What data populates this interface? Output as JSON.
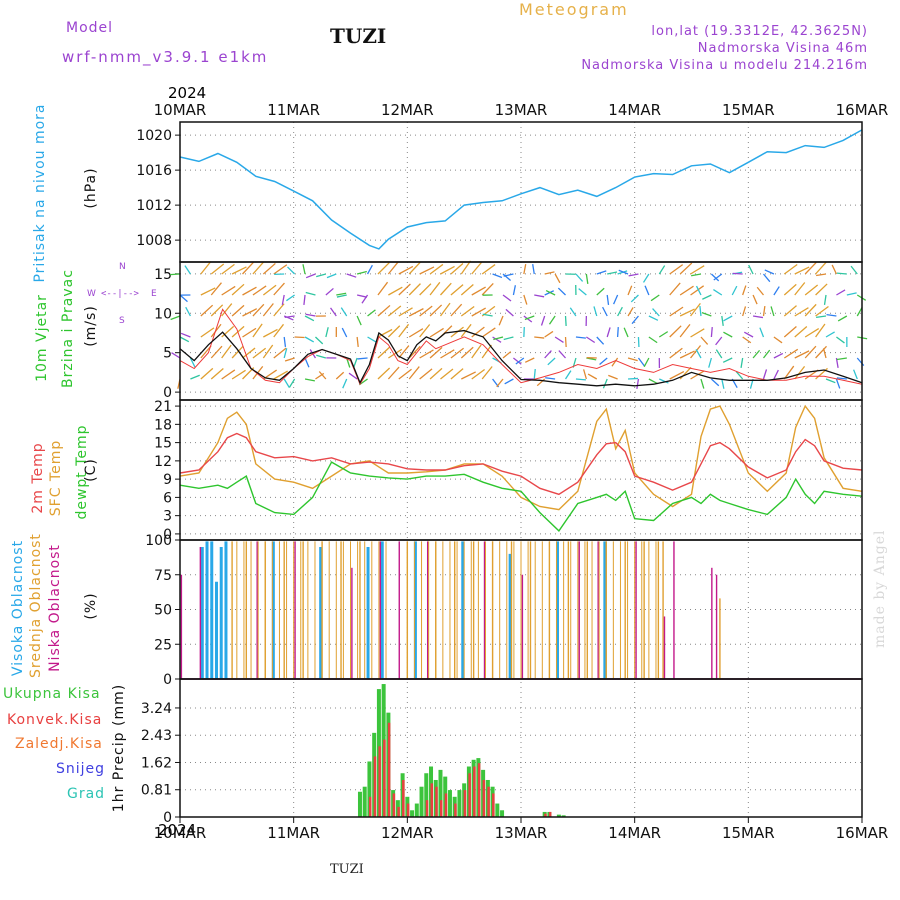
{
  "header": {
    "model_label": "Model",
    "model_name": "wrf-nmm_v3.9.1 e1km",
    "title": "TUZI",
    "product": "Meteogram",
    "lonlat": "lon,lat (19.3312E, 42.3625N)",
    "altitude": "Nadmorska Visina 46m",
    "model_altitude": "Nadmorska Visina u modelu 214.216m"
  },
  "time_axis": {
    "year": "2024",
    "ticks": [
      "10MAR",
      "11MAR",
      "12MAR",
      "13MAR",
      "14MAR",
      "15MAR",
      "16MAR"
    ]
  },
  "footer": {
    "station": "TUZI",
    "signature": "made by Angel"
  },
  "colors": {
    "pressure": "#29a8e8",
    "temp2m": "#e8474a",
    "sfc": "#e0a030",
    "dewpt": "#2ec52e",
    "high_cloud": "#29a8e8",
    "mid_cloud": "#e0a030",
    "low_cloud": "#c2188a",
    "total_precip": "#3cc43c",
    "conv_precip": "#e84040",
    "frozen": "#f07830",
    "snow": "#4040e0",
    "grad": "#2cc4b4",
    "wind_speed": "#111111",
    "gust": "#ee3a3a"
  },
  "panels": {
    "pressure": {
      "label_blue": "Pritisak na nivou mora",
      "unit": "(hPa)",
      "yticks": [
        "1008",
        "1012",
        "1016",
        "1020"
      ]
    },
    "wind": {
      "label_green": "10m Vjetar",
      "label_green2": "Brzina i Pravac",
      "unit": "(m/s)",
      "yticks": [
        "0",
        "5",
        "10",
        "15"
      ],
      "compass": [
        "W",
        "<--|-->",
        "E",
        "S",
        "N"
      ]
    },
    "temp": {
      "l1": "2m Temp",
      "l2": "SFC Temp",
      "l3": "dewpt Temp",
      "unit": "(C)",
      "yticks": [
        "0",
        "3",
        "6",
        "9",
        "12",
        "15",
        "18",
        "21"
      ]
    },
    "cloud": {
      "l1": "Visoka Oblacnost",
      "l2": "Srednja Oblacnost",
      "l3": "Niska Oblacnost",
      "unit": "(%)",
      "yticks": [
        "0",
        "25",
        "50",
        "75",
        "100"
      ]
    },
    "precip": {
      "unit": "1hr Precip (mm)",
      "yticks": [
        "0",
        "0.81",
        "1.62",
        "2.43",
        "3.24"
      ],
      "legend": [
        "Ukupna Kisa",
        "Konvek.Kisa",
        "Zaledj.Kisa",
        "Snijeg",
        "Grad"
      ]
    }
  },
  "chart_data": [
    {
      "type": "line",
      "name": "pressure",
      "ylabel": "(hPa)",
      "ylim": [
        1005.5,
        1021.5
      ],
      "x_hours": [
        0,
        4,
        8,
        12,
        16,
        20,
        24,
        28,
        32,
        36,
        40,
        42,
        44,
        48,
        52,
        56,
        60,
        64,
        68,
        72,
        76,
        80,
        84,
        88,
        92,
        96,
        100,
        104,
        108,
        112,
        116,
        120,
        124,
        128,
        132,
        136,
        140,
        144
      ],
      "values": [
        1017.5,
        1017,
        1017.9,
        1016.9,
        1015.3,
        1014.7,
        1013.6,
        1012.5,
        1010.3,
        1008.8,
        1007.4,
        1007,
        1008.1,
        1009.5,
        1010.0,
        1010.2,
        1012.0,
        1012.3,
        1012.5,
        1013.3,
        1014.0,
        1013.2,
        1013.7,
        1013.0,
        1014.0,
        1015.2,
        1015.6,
        1015.5,
        1016.5,
        1016.7,
        1015.7,
        1016.9,
        1018.1,
        1018.0,
        1018.8,
        1018.6,
        1019.4,
        1020.6
      ]
    },
    {
      "type": "line",
      "name": "wind",
      "ylabel": "(m/s)",
      "ylim": [
        -1,
        16.5
      ],
      "x_hours": [
        0,
        3,
        6,
        9,
        12,
        15,
        18,
        21,
        24,
        27,
        30,
        33,
        36,
        38,
        40,
        42,
        44,
        46,
        48,
        50,
        52,
        54,
        56,
        60,
        64,
        68,
        72,
        76,
        80,
        84,
        88,
        92,
        96,
        100,
        104,
        108,
        112,
        116,
        120,
        124,
        128,
        132,
        136,
        140,
        144
      ],
      "speed": [
        5.5,
        4,
        6,
        7.6,
        5.5,
        3,
        1.8,
        1.5,
        3,
        4.8,
        5.4,
        4.8,
        4.2,
        1.2,
        3.5,
        7.5,
        6.6,
        4.6,
        4,
        6,
        7,
        6.5,
        7.5,
        7.8,
        7,
        4,
        1.6,
        1.5,
        1.2,
        1,
        0.8,
        1,
        0.8,
        1,
        1.5,
        2.5,
        1.8,
        1.5,
        1.5,
        1.5,
        1.8,
        2.5,
        2.8,
        2,
        1.2
      ],
      "gust": [
        4,
        3,
        5,
        10.5,
        8,
        3,
        1.5,
        1.2,
        3,
        4.5,
        5.4,
        4.8,
        4,
        1,
        3,
        7,
        6,
        4,
        3.5,
        5,
        6.5,
        5.5,
        6,
        7,
        6,
        3.5,
        1.2,
        1.8,
        2.5,
        3.5,
        3,
        4,
        3,
        2.5,
        3.5,
        3,
        2.5,
        3,
        2,
        1.5,
        1.5,
        2,
        2,
        1.5,
        1
      ]
    },
    {
      "type": "line",
      "name": "temperature",
      "ylabel": "(C)",
      "ylim": [
        -1,
        22
      ],
      "x_hours": [
        0,
        4,
        8,
        10,
        12,
        14,
        16,
        20,
        24,
        28,
        32,
        36,
        40,
        44,
        48,
        52,
        56,
        60,
        64,
        68,
        72,
        76,
        80,
        84,
        88,
        90,
        92,
        94,
        96,
        100,
        104,
        108,
        110,
        112,
        114,
        116,
        120,
        124,
        128,
        130,
        132,
        134,
        136,
        140,
        144
      ],
      "t2m": [
        10,
        10.5,
        13.5,
        15.8,
        16.5,
        15.8,
        13.5,
        12.5,
        12.7,
        12,
        12.5,
        11.5,
        11.8,
        11.5,
        10.7,
        10.5,
        10.5,
        11.2,
        11.5,
        10.3,
        9.5,
        7.5,
        6.5,
        8.5,
        13,
        14.8,
        15,
        13.5,
        9.5,
        8.5,
        7.2,
        8.5,
        11.5,
        14.5,
        15,
        14,
        11,
        9.2,
        10.5,
        13.5,
        15.5,
        14.5,
        12,
        10.8,
        10.5
      ],
      "sfc": [
        9.5,
        10,
        15,
        19,
        20,
        18,
        11.5,
        9,
        8.5,
        7.5,
        9.5,
        11.5,
        12,
        10,
        10,
        10.2,
        10.5,
        11.5,
        11.5,
        9.5,
        6,
        4.5,
        4,
        7,
        18.5,
        20.5,
        14,
        17,
        10,
        6.5,
        4.5,
        6.5,
        16,
        20.5,
        21,
        18,
        10,
        7,
        10,
        17.5,
        21,
        19,
        12.5,
        7.5,
        7
      ],
      "dewpt": [
        8,
        7.5,
        8,
        7.5,
        8.5,
        9.5,
        5,
        3.5,
        3.2,
        6,
        11.8,
        10,
        9.5,
        9.2,
        9,
        9.5,
        9.5,
        9.8,
        8.5,
        7.5,
        7,
        3.5,
        0.5,
        5,
        6,
        6.5,
        5.5,
        7,
        2.5,
        2.2,
        5,
        6,
        5,
        6.5,
        5.5,
        5,
        4,
        3.2,
        6,
        9,
        6.5,
        5,
        7,
        6.5,
        6.2
      ]
    },
    {
      "type": "bar",
      "name": "cloud_cover",
      "ylabel": "(%)",
      "ylim": [
        0,
        100
      ],
      "series": [
        {
          "name": "Visoka Oblacnost",
          "hours": [
            5,
            6,
            7,
            8,
            9,
            10,
            20,
            30,
            40,
            43,
            50,
            60,
            70,
            80,
            90,
            100
          ],
          "values": [
            95,
            99,
            99,
            70,
            95,
            99,
            99,
            95,
            95,
            99,
            99,
            99,
            90,
            99,
            99,
            0
          ]
        },
        {
          "name": "Srednja Oblacnost",
          "hours": [
            11,
            14,
            18,
            22,
            26,
            30,
            34,
            38,
            48,
            54,
            58,
            62,
            66,
            70,
            74,
            78,
            82,
            86,
            90,
            94,
            98,
            101,
            102,
            114
          ],
          "values": [
            99,
            99,
            99,
            99,
            99,
            99,
            99,
            99,
            99,
            99,
            99,
            99,
            99,
            99,
            99,
            99,
            99,
            99,
            99,
            99,
            99,
            99,
            99,
            58
          ]
        },
        {
          "name": "Niska Oblacnost",
          "hours": [
            0,
            4,
            16,
            24,
            36,
            42,
            46,
            52,
            64,
            72,
            84,
            88,
            96,
            102,
            104,
            112,
            113
          ],
          "values": [
            75,
            95,
            99,
            99,
            80,
            99,
            99,
            99,
            99,
            75,
            99,
            99,
            99,
            45,
            99,
            80,
            75
          ]
        }
      ]
    },
    {
      "type": "bar",
      "name": "precipitation",
      "ylabel": "1hr Precip (mm)",
      "ylim": [
        0,
        4.1
      ],
      "series": [
        {
          "name": "Ukupna Kisa",
          "hours": [
            38,
            39,
            40,
            41,
            42,
            43,
            44,
            45,
            46,
            47,
            48,
            49,
            50,
            51,
            52,
            53,
            54,
            55,
            56,
            57,
            58,
            59,
            60,
            61,
            62,
            63,
            64,
            65,
            66,
            67,
            68,
            77,
            78,
            80,
            81
          ],
          "values": [
            0.75,
            0.9,
            1.65,
            2.5,
            3.8,
            3.95,
            3.1,
            0.8,
            0.5,
            1.3,
            0.6,
            0.2,
            0.4,
            0.9,
            1.3,
            1.5,
            1.1,
            1.4,
            1.2,
            0.8,
            0.6,
            0.8,
            1.0,
            1.5,
            1.7,
            1.75,
            1.4,
            1.1,
            0.9,
            0.4,
            0.2,
            0.15,
            0.15,
            0.07,
            0.05
          ]
        },
        {
          "name": "Konvek.Kisa",
          "hours": [
            40,
            41,
            42,
            43,
            44,
            45,
            46,
            47,
            48,
            52,
            53,
            54,
            55,
            56,
            58,
            60,
            61,
            62,
            63,
            64,
            65,
            66,
            77,
            78
          ],
          "values": [
            0.6,
            1.8,
            2.1,
            2.3,
            2.8,
            0.7,
            0.3,
            1.1,
            0.4,
            0.5,
            1.0,
            0.9,
            0.5,
            0.7,
            0.4,
            0.8,
            1.3,
            1.5,
            1.6,
            1.1,
            0.9,
            0.7,
            0.1,
            0.15
          ]
        }
      ]
    }
  ]
}
